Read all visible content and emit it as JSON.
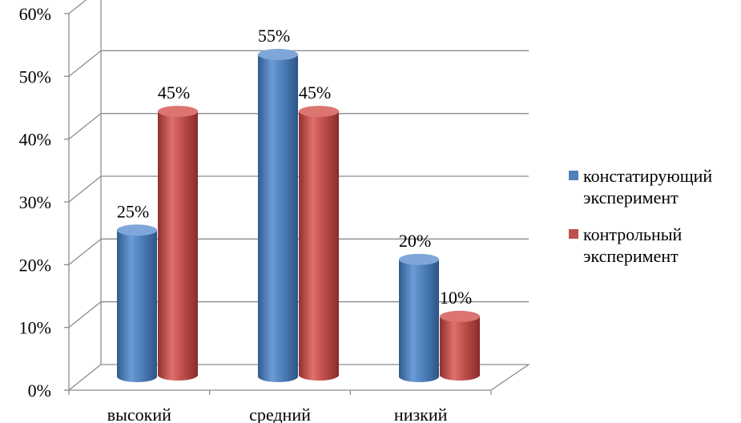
{
  "chart_data": {
    "type": "bar",
    "categories": [
      "высокий",
      "средний",
      "низкий"
    ],
    "series": [
      {
        "name": "констатирующий эксперимент",
        "values": [
          25,
          55,
          20
        ],
        "labels": [
          "25%",
          "55%",
          "20%"
        ],
        "color": "#4f81bd"
      },
      {
        "name": "контрольный эксперимент",
        "values": [
          45,
          45,
          10
        ],
        "labels": [
          "45%",
          "45%",
          "10%"
        ],
        "color": "#c0504d"
      }
    ],
    "yticks": [
      "0%",
      "10%",
      "20%",
      "30%",
      "40%",
      "50%",
      "60%"
    ],
    "ylim": [
      0,
      60
    ],
    "grid": true,
    "legend_position": "right",
    "style": "3d-cylinder"
  },
  "legend": {
    "items": [
      {
        "line1": "констатирующий",
        "line2": "эксперимент",
        "color": "#4f81bd"
      },
      {
        "line1": "контрольный",
        "line2": "эксперимент",
        "color": "#c0504d"
      }
    ]
  }
}
